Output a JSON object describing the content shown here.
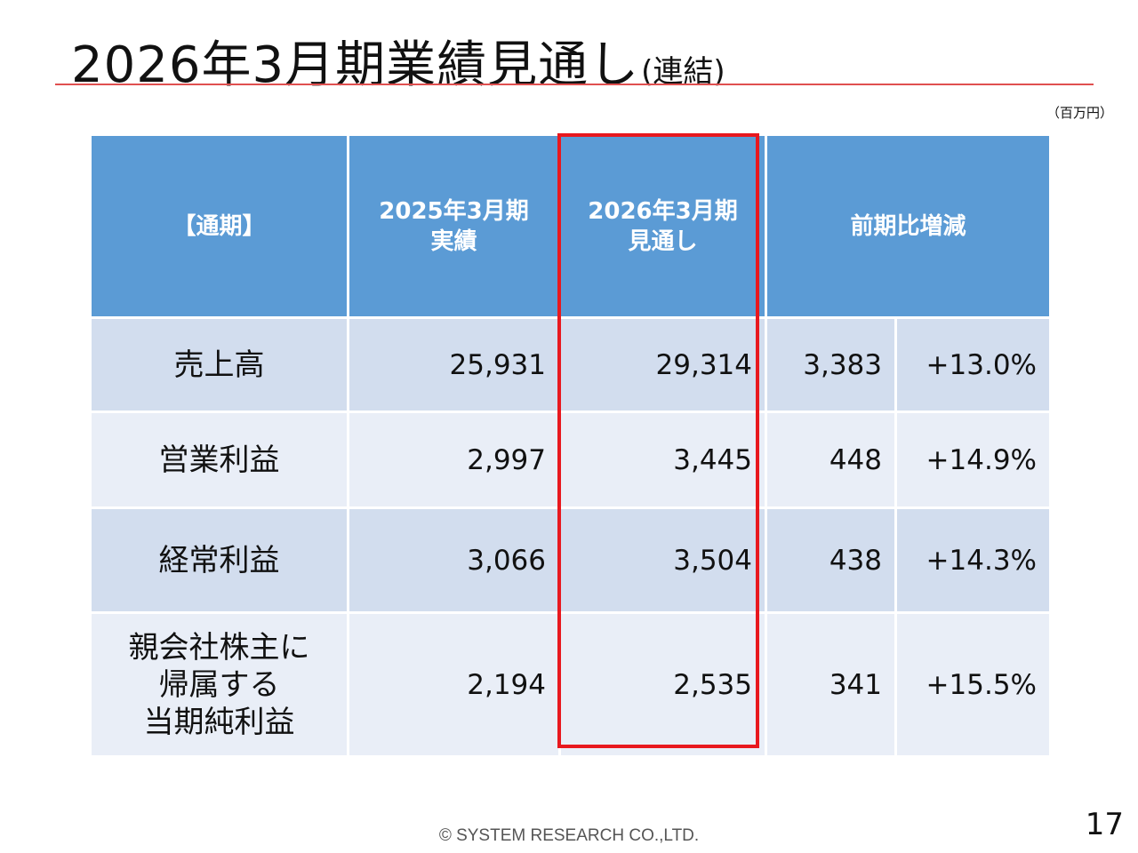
{
  "title": {
    "main": "2026年3月期業績見通し",
    "sub": "(連結)"
  },
  "unit": "（百万円）",
  "table": {
    "headers": {
      "label": "【通期】",
      "prev_line1": "2025年3月期",
      "prev_line2": "実績",
      "fcst_line1": "2026年3月期",
      "fcst_line2": "見通し",
      "change": "前期比増減"
    },
    "rows": [
      {
        "label": "売上高",
        "prev": "25,931",
        "fcst": "29,314",
        "diff": "3,383",
        "pct": "+13.0%"
      },
      {
        "label": "営業利益",
        "prev": "2,997",
        "fcst": "3,445",
        "diff": "448",
        "pct": "+14.9%"
      },
      {
        "label": "経常利益",
        "prev": "3,066",
        "fcst": "3,504",
        "diff": "438",
        "pct": "+14.3%"
      },
      {
        "label_lines": [
          "親会社株主に",
          "帰属する",
          "当期純利益"
        ],
        "prev": "2,194",
        "fcst": "2,535",
        "diff": "341",
        "pct": "+15.5%"
      }
    ]
  },
  "colors": {
    "header": "#5b9bd5",
    "row_dark": "#d2ddee",
    "row_light": "#e9eef7",
    "highlight": "#e8181e",
    "title_rule": "#e05050"
  },
  "footer": "© SYSTEM RESEARCH CO.,LTD.",
  "page_number": "17"
}
